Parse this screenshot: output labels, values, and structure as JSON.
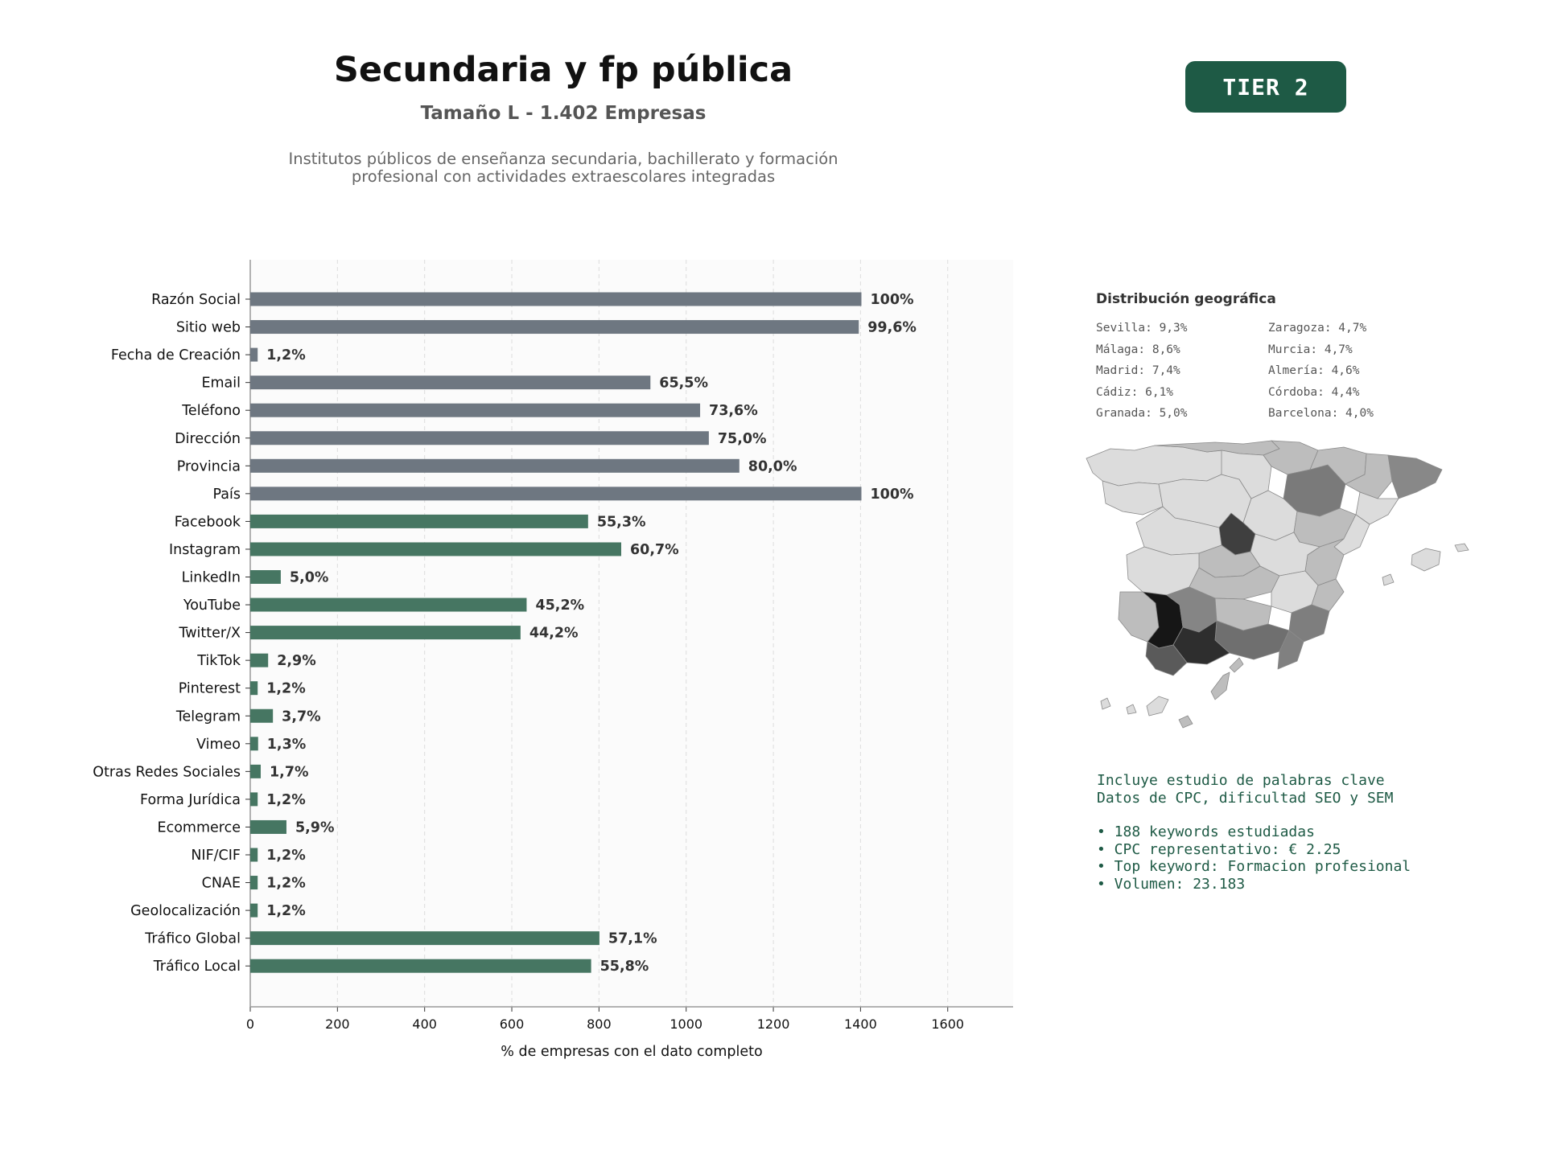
{
  "header": {
    "title": "Secundaria y fp pública",
    "subtitle": "Tamaño L - 1.402 Empresas",
    "description_line1": "Institutos públicos de enseñanza secundaria, bachillerato y formación",
    "description_line2": "profesional con actividades extraescolares integradas"
  },
  "badge": {
    "label": "TIER 2",
    "color": "#1e5a45"
  },
  "chart_data": {
    "type": "bar",
    "orientation": "horizontal",
    "xlabel": "% de empresas con el dato completo",
    "xlim": [
      0,
      1750
    ],
    "xticks": [
      0,
      200,
      400,
      600,
      800,
      1000,
      1200,
      1400,
      1600
    ],
    "grid": "vertical dashed",
    "colors": {
      "basic": "#6e7781",
      "digital": "#467662"
    },
    "categories": [
      "Razón Social",
      "Sitio web",
      "Fecha de Creación",
      "Email",
      "Teléfono",
      "Dirección",
      "Provincia",
      "País",
      "Facebook",
      "Instagram",
      "LinkedIn",
      "YouTube",
      "Twitter/X",
      "TikTok",
      "Pinterest",
      "Telegram",
      "Vimeo",
      "Otras Redes Sociales",
      "Forma Jurídica",
      "Ecommerce",
      "NIF/CIF",
      "CNAE",
      "Geolocalización",
      "Tráfico Global",
      "Tráfico Local"
    ],
    "values": [
      1402,
      1396,
      17,
      918,
      1032,
      1052,
      1122,
      1402,
      775,
      851,
      70,
      634,
      620,
      41,
      17,
      52,
      18,
      24,
      17,
      83,
      17,
      17,
      17,
      801,
      782
    ],
    "labels": [
      "100%",
      "99,6%",
      "1,2%",
      "65,5%",
      "73,6%",
      "75,0%",
      "80,0%",
      "100%",
      "55,3%",
      "60,7%",
      "5,0%",
      "45,2%",
      "44,2%",
      "2,9%",
      "1,2%",
      "3,7%",
      "1,3%",
      "1,7%",
      "1,2%",
      "5,9%",
      "1,2%",
      "1,2%",
      "1,2%",
      "57,1%",
      "55,8%"
    ],
    "groups": [
      "basic",
      "basic",
      "basic",
      "basic",
      "basic",
      "basic",
      "basic",
      "basic",
      "digital",
      "digital",
      "digital",
      "digital",
      "digital",
      "digital",
      "digital",
      "digital",
      "digital",
      "digital",
      "digital",
      "digital",
      "digital",
      "digital",
      "digital",
      "digital",
      "digital"
    ]
  },
  "geo": {
    "title": "Distribución geográfica",
    "items": [
      "Sevilla: 9,3%",
      "Zaragoza: 4,7%",
      "Málaga: 8,6%",
      "Murcia: 4,7%",
      "Madrid: 7,4%",
      "Almería: 4,6%",
      "Cádiz: 6,1%",
      "Córdoba: 4,4%",
      "Granada: 5,0%",
      "Barcelona: 4,0%"
    ],
    "map_shades": {
      "sevilla": "#161616",
      "malaga": "#2e2e2e",
      "madrid": "#3f3f3f",
      "cadiz": "#5a5a5a",
      "granada": "#6f6f6f",
      "zaragoza": "#7a7a7a",
      "murcia": "#7e7e7e",
      "almeria": "#808080",
      "cordoba": "#858585",
      "barcelona": "#888888",
      "default_light": "#dcdcdc",
      "default_mid": "#bdbdbd"
    }
  },
  "keywords": {
    "line1": "Incluye estudio de palabras clave",
    "line2": "Datos de CPC, dificultad SEO y SEM",
    "bullet1": "• 188 keywords estudiadas",
    "bullet2": "• CPC representativo: € 2.25",
    "bullet3": "• Top keyword: Formacion profesional",
    "bullet4": "• Volumen: 23.183"
  }
}
